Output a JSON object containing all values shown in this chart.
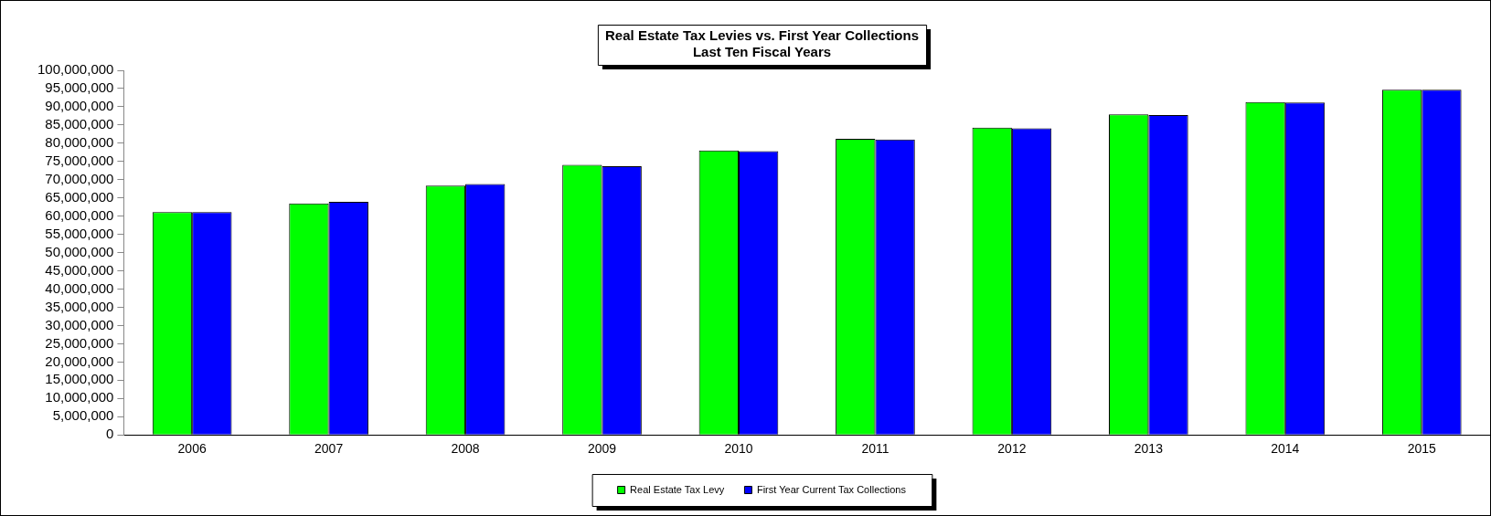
{
  "chart_data": {
    "type": "bar",
    "title": "Real Estate Tax Levies vs. First Year Collections",
    "subtitle": "Last Ten Fiscal Years",
    "categories": [
      "2006",
      "2007",
      "2008",
      "2009",
      "2010",
      "2011",
      "2012",
      "2013",
      "2014",
      "2015"
    ],
    "series": [
      {
        "name": "Real Estate Tax Levy",
        "color": "#00ff00",
        "values": [
          61100000,
          63500000,
          68400000,
          74100000,
          78000000,
          81200000,
          84300000,
          87900000,
          91300000,
          94700000
        ]
      },
      {
        "name": "First Year Current Tax Collections",
        "color": "#0000ff",
        "values": [
          61100000,
          63900000,
          68800000,
          73700000,
          77800000,
          81000000,
          84100000,
          87700000,
          91200000,
          94700000
        ]
      }
    ],
    "ylim": [
      0,
      100000000
    ],
    "yticks": [
      {
        "value": 0,
        "label": "0"
      },
      {
        "value": 5000000,
        "label": "5,000,000"
      },
      {
        "value": 10000000,
        "label": "10,000,000"
      },
      {
        "value": 15000000,
        "label": "15,000,000"
      },
      {
        "value": 20000000,
        "label": "20,000,000"
      },
      {
        "value": 25000000,
        "label": "25,000,000"
      },
      {
        "value": 30000000,
        "label": "30,000,000"
      },
      {
        "value": 35000000,
        "label": "35,000,000"
      },
      {
        "value": 40000000,
        "label": "40,000,000"
      },
      {
        "value": 45000000,
        "label": "45,000,000"
      },
      {
        "value": 50000000,
        "label": "50,000,000"
      },
      {
        "value": 55000000,
        "label": "55,000,000"
      },
      {
        "value": 60000000,
        "label": "60,000,000"
      },
      {
        "value": 65000000,
        "label": "65,000,000"
      },
      {
        "value": 70000000,
        "label": "70,000,000"
      },
      {
        "value": 75000000,
        "label": "75,000,000"
      },
      {
        "value": 80000000,
        "label": "80,000,000"
      },
      {
        "value": 85000000,
        "label": "85,000,000"
      },
      {
        "value": 90000000,
        "label": "90,000,000"
      },
      {
        "value": 95000000,
        "label": "95,000,000"
      },
      {
        "value": 100000000,
        "label": "100,000,000"
      }
    ],
    "grid": false,
    "legend": "bottom"
  }
}
